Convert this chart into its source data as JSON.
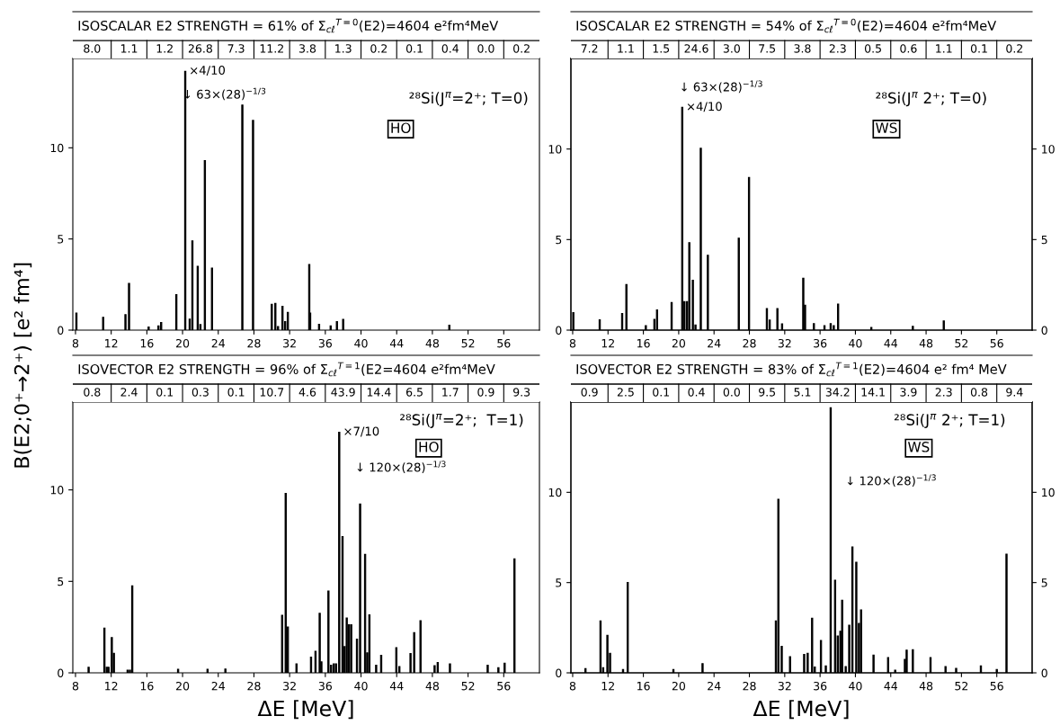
{
  "chart_data": [
    {
      "type": "bar",
      "title": "ISOSCALAR E2 STRENGTH = 61% of Σ$_{cℓ}$$^{T=0}$(E2)=4604 e²fm⁴MeV",
      "ylabel": "B(E2;0⁺→2⁺) [e² fm⁴]",
      "color": "#000000",
      "x": [
        8.1,
        11.1,
        13.6,
        14.0,
        16.2,
        17.3,
        17.6,
        19.3,
        20.3,
        20.8,
        21.1,
        21.7,
        22.0,
        22.5,
        23.3,
        26.7,
        27.9,
        30.0,
        30.4,
        30.7,
        31.2,
        31.5,
        31.8,
        34.2,
        34.3,
        35.3,
        36.6,
        37.3,
        38.0,
        49.9
      ],
      "values": [
        0.93,
        0.7,
        0.85,
        2.56,
        0.17,
        0.23,
        0.42,
        1.94,
        14.2,
        0.6,
        4.9,
        3.5,
        0.3,
        9.3,
        3.4,
        12.35,
        11.5,
        1.42,
        1.46,
        0.2,
        1.3,
        0.47,
        0.97,
        3.6,
        0.93,
        0.32,
        0.23,
        0.47,
        0.59,
        0.27
      ],
      "xlim": [
        7.7,
        60
      ],
      "ylim": [
        0,
        14.9
      ],
      "xticks": [
        8,
        12,
        16,
        20,
        24,
        28,
        32,
        36,
        40,
        44,
        48,
        52,
        56
      ],
      "yticks": [
        0,
        5,
        10
      ],
      "annotations": [
        "8.0",
        "1.1",
        "1.2",
        "26.8",
        "7.3",
        "11.2",
        "3.8",
        "1.3",
        "0.2",
        "0.1",
        "0.4",
        "0.0",
        "0.2",
        "²⁸Si(J$^{π}$=2⁺; T=0)",
        "↓ 63×(28)$^{−1/3}$",
        "HO",
        {
          "text": "×4/10",
          "x": 20.3,
          "y": 14.2
        }
      ]
    },
    {
      "type": "bar",
      "title": "ISOSCALAR E2 STRENGTH = 54% of Σ$_{cℓ}$$^{T=0}$(E2)=4604 e²fm⁴MeV",
      "color": "#000000",
      "x": [
        8.07,
        11.06,
        13.6,
        14.08,
        16.28,
        17.25,
        17.55,
        19.2,
        20.4,
        20.65,
        20.95,
        21.2,
        21.6,
        21.9,
        22.5,
        23.3,
        26.8,
        27.96,
        29.98,
        30.3,
        31.17,
        31.7,
        34.1,
        34.3,
        35.3,
        36.5,
        37.2,
        37.55,
        38.04,
        41.8,
        46.5,
        50.0
      ],
      "values": [
        0.97,
        0.57,
        0.91,
        2.52,
        0.25,
        0.59,
        1.12,
        1.53,
        12.3,
        1.57,
        1.57,
        4.83,
        2.75,
        0.28,
        10.04,
        4.13,
        5.08,
        8.43,
        1.19,
        0.55,
        1.19,
        0.34,
        2.86,
        1.38,
        0.36,
        0.25,
        0.36,
        0.25,
        1.44,
        0.15,
        0.21,
        0.51
      ],
      "xlim": [
        7.8,
        60
      ],
      "ylim": [
        0,
        15.0
      ],
      "xticks": [
        8,
        12,
        16,
        20,
        24,
        28,
        32,
        36,
        40,
        44,
        48,
        52,
        56
      ],
      "yticks": [
        0,
        5,
        10
      ],
      "y2lim": [
        0,
        15.0
      ],
      "y2ticks": [
        0,
        5,
        10
      ],
      "annotations": [
        "7.2",
        "1.1",
        "1.5",
        "24.6",
        "3.0",
        "7.5",
        "3.8",
        "2.3",
        "0.5",
        "0.6",
        "1.1",
        "0.1",
        "0.2",
        "²⁸Si(J$^{π}$ 2⁺; T=0)",
        "↓ 63×(28)$^{−1/3}$",
        "WS",
        {
          "text": "×4/10",
          "x": 20.4,
          "y": 12.3
        }
      ]
    },
    {
      "type": "bar",
      "title": "ISOVECTOR E2 STRENGTH = 96% of Σ$_{cℓ}$$^{T=1}$(E2=4604 e²fm⁴MeV",
      "xlabel": "ΔE [MeV]",
      "color": "#000000",
      "x": [
        9.47,
        11.24,
        11.5,
        11.7,
        12.07,
        12.3,
        13.84,
        14.1,
        14.36,
        19.5,
        22.8,
        24.8,
        31.16,
        31.56,
        31.8,
        32.77,
        34.4,
        34.9,
        35.37,
        35.56,
        36.35,
        36.65,
        36.95,
        37.2,
        37.56,
        37.93,
        38.16,
        38.4,
        38.65,
        38.9,
        39.55,
        39.9,
        40.46,
        40.7,
        40.94,
        41.7,
        42.26,
        43.96,
        44.3,
        45.55,
        45.96,
        46.67,
        48.25,
        48.6,
        49.97,
        54.2,
        55.4,
        56.1,
        57.2
      ],
      "values": [
        0.3,
        2.44,
        0.3,
        0.3,
        1.93,
        1.07,
        0.15,
        0.15,
        4.75,
        0.19,
        0.19,
        0.21,
        3.15,
        9.81,
        2.51,
        0.49,
        0.86,
        1.18,
        3.25,
        0.6,
        4.47,
        0.41,
        0.49,
        0.49,
        13.15,
        7.45,
        1.43,
        3.0,
        2.63,
        2.63,
        1.84,
        9.23,
        6.47,
        1.09,
        3.17,
        0.41,
        0.96,
        1.37,
        0.34,
        1.05,
        2.2,
        2.85,
        0.39,
        0.56,
        0.49,
        0.41,
        0.28,
        0.53,
        6.23
      ],
      "xlim": [
        7.7,
        60
      ],
      "ylim": [
        0,
        14.8
      ],
      "xticks": [
        8,
        12,
        16,
        20,
        24,
        28,
        32,
        36,
        40,
        44,
        48,
        52,
        56
      ],
      "yticks": [
        0,
        5,
        10
      ],
      "annotations": [
        "0.8",
        "2.4",
        "0.1",
        "0.3",
        "0.1",
        "10.7",
        "4.6",
        "43.9",
        "14.4",
        "6.5",
        "1.7",
        "0.9",
        "9.3",
        "²⁸Si(J$^{π}$=2⁺;  T=1)",
        "↓ 120×(28)$^{−1/3}$",
        "HO",
        {
          "text": "×7/10",
          "x": 37.56,
          "y": 13.15
        }
      ]
    },
    {
      "type": "bar",
      "title": "ISOVECTOR E2 STRENGTH = 83% of Σ$_{cℓ}$$^{T=1}$(E2)=4604 e² fm⁴ MeV",
      "xlabel": "ΔE [MeV]",
      "color": "#000000",
      "x": [
        9.45,
        11.15,
        11.45,
        11.93,
        12.23,
        13.7,
        14.23,
        19.4,
        22.7,
        31.0,
        31.28,
        31.66,
        32.6,
        34.2,
        34.6,
        35.1,
        35.4,
        36.1,
        36.65,
        37.2,
        37.7,
        38.0,
        38.3,
        38.5,
        38.9,
        39.3,
        39.66,
        40.1,
        40.4,
        40.64,
        42.05,
        43.7,
        44.5,
        45.6,
        45.8,
        46.5,
        48.5,
        50.2,
        51.4,
        54.2,
        56.0,
        57.1
      ],
      "values": [
        0.23,
        2.87,
        0.28,
        2.08,
        1.08,
        0.19,
        5.0,
        0.19,
        0.51,
        2.87,
        9.62,
        1.47,
        0.89,
        1.02,
        1.08,
        3.02,
        0.32,
        1.79,
        0.38,
        14.68,
        5.13,
        2.04,
        2.3,
        4.02,
        0.34,
        2.64,
        6.98,
        6.13,
        2.74,
        3.49,
        0.98,
        0.85,
        0.15,
        0.75,
        1.26,
        1.28,
        0.85,
        0.34,
        0.25,
        0.38,
        0.19,
        6.57
      ],
      "xlim": [
        7.8,
        60
      ],
      "ylim": [
        0,
        15.0
      ],
      "xticks": [
        8,
        12,
        16,
        20,
        24,
        28,
        32,
        36,
        40,
        44,
        48,
        52,
        56
      ],
      "yticks": [
        0,
        5,
        10
      ],
      "y2lim": [
        0,
        15.0
      ],
      "y2ticks": [
        0,
        5,
        10
      ],
      "annotations": [
        "0.9",
        "2.5",
        "0.1",
        "0.4",
        "0.0",
        "9.5",
        "5.1",
        "34.2",
        "14.1",
        "3.9",
        "2.3",
        "0.8",
        "9.4",
        "²⁸Si(J$^{π}$ 2⁺; T=1)",
        "↓ 120×(28)$^{−1/3}$",
        "WS"
      ]
    }
  ]
}
